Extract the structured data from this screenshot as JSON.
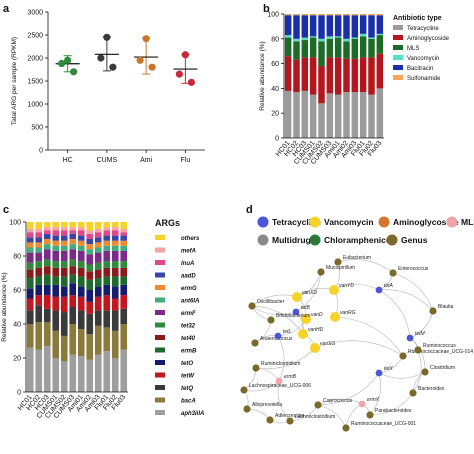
{
  "panels": {
    "a": "a",
    "b": "b",
    "c": "c",
    "d": "d"
  },
  "chart_data": [
    {
      "type": "scatter",
      "ylabel": "Tatal ARG per sample (RPKM)",
      "ylim": [
        0,
        3000
      ],
      "yticks": [
        0,
        500,
        1000,
        1500,
        2000,
        2500,
        3000
      ],
      "categories": [
        "HC",
        "CUMS",
        "Ami",
        "Flu"
      ],
      "colors": [
        "#2e8b3a",
        "#3a3a3a",
        "#c8762e",
        "#c8283a"
      ],
      "points": [
        [
          1950,
          1880,
          1700
        ],
        [
          2450,
          2000,
          1800
        ],
        [
          2420,
          1950,
          1800
        ],
        [
          2070,
          1650,
          1470
        ]
      ],
      "mean": [
        1875,
        2080,
        2020,
        1760
      ],
      "err_high": [
        2050,
        2460,
        2440,
        2080
      ],
      "err_low": [
        1700,
        1720,
        1650,
        1450
      ],
      "grid": false
    },
    {
      "type": "bar",
      "stacked": true,
      "ylabel": "Relative abundance (%)",
      "ylim": [
        0,
        100
      ],
      "yticks": [
        0,
        20,
        40,
        60,
        80,
        100
      ],
      "categories": [
        "HC01",
        "HC02",
        "HC03",
        "CUMS01",
        "CUMS02",
        "CUMS03",
        "Ami01",
        "Ami02",
        "Ami03",
        "Flu01",
        "Flu02",
        "Flu03"
      ],
      "legend_title": "Antibiotic type",
      "legend_position": "right",
      "series": [
        {
          "name": "Tetracycline",
          "color": "#9b9b9b",
          "values": [
            38,
            37,
            38,
            35,
            28,
            36,
            35,
            37,
            37,
            37,
            35,
            40
          ]
        },
        {
          "name": "Aminoglycoside",
          "color": "#b0171e",
          "values": [
            28,
            26,
            27,
            30,
            30,
            29,
            30,
            27,
            27,
            28,
            30,
            28
          ]
        },
        {
          "name": "MLS",
          "color": "#1e6b27",
          "values": [
            15,
            15,
            14,
            16,
            20,
            15,
            16,
            14,
            16,
            17,
            15,
            15
          ]
        },
        {
          "name": "Vancomycin",
          "color": "#55e0c2",
          "values": [
            2,
            2,
            2,
            1,
            2,
            2,
            1,
            2,
            1,
            2,
            1,
            1
          ]
        },
        {
          "name": "Bacitracin",
          "color": "#1a2fa8",
          "values": [
            16,
            19,
            18,
            17,
            19,
            17,
            17,
            19,
            18,
            15,
            18,
            15
          ]
        },
        {
          "name": "Sulfonamide",
          "color": "#f2a65a",
          "values": [
            1,
            1,
            1,
            1,
            1,
            1,
            1,
            1,
            1,
            1,
            1,
            1
          ]
        }
      ]
    },
    {
      "type": "bar",
      "stacked": true,
      "ylabel": "Relative abundance (%)",
      "ylim": [
        0,
        100
      ],
      "yticks": [
        0,
        20,
        40,
        60,
        80,
        100
      ],
      "categories": [
        "HC01",
        "HC02",
        "HC03",
        "CUMS01",
        "CUMS02",
        "CUMS03",
        "Ami01",
        "Ami02",
        "Ami03",
        "Flu01",
        "Flu02",
        "Flu03"
      ],
      "legend_title": "ARGs",
      "legend_position": "right",
      "series": [
        {
          "name": "aph3iiIA",
          "color": "#9e9e9e",
          "values": [
            26,
            25,
            27,
            20,
            18,
            22,
            21,
            19,
            22,
            24,
            20,
            25
          ]
        },
        {
          "name": "bacA",
          "color": "#8a7a3c",
          "values": [
            14,
            16,
            14,
            16,
            15,
            18,
            16,
            15,
            17,
            14,
            16,
            15
          ]
        },
        {
          "name": "tetQ",
          "color": "#3a3a3a",
          "values": [
            8,
            10,
            8,
            12,
            14,
            10,
            11,
            12,
            9,
            10,
            12,
            9
          ]
        },
        {
          "name": "tetW",
          "color": "#c0181e",
          "values": [
            7,
            6,
            8,
            8,
            9,
            7,
            8,
            7,
            8,
            9,
            7,
            8
          ]
        },
        {
          "name": "tetO",
          "color": "#151b6e",
          "values": [
            6,
            6,
            6,
            7,
            6,
            7,
            6,
            7,
            6,
            6,
            7,
            6
          ]
        },
        {
          "name": "ermB",
          "color": "#1e6a2c",
          "values": [
            6,
            5,
            6,
            5,
            6,
            5,
            6,
            6,
            5,
            5,
            6,
            5
          ]
        },
        {
          "name": "tet40",
          "color": "#8b1a1a",
          "values": [
            5,
            5,
            5,
            5,
            5,
            5,
            5,
            5,
            5,
            5,
            5,
            5
          ]
        },
        {
          "name": "tet32",
          "color": "#2f8a3b",
          "values": [
            4,
            4,
            4,
            4,
            4,
            4,
            4,
            4,
            4,
            4,
            4,
            4
          ]
        },
        {
          "name": "ermF",
          "color": "#7b2a8a",
          "values": [
            6,
            5,
            6,
            6,
            6,
            6,
            6,
            6,
            6,
            6,
            6,
            6
          ]
        },
        {
          "name": "ant6IA",
          "color": "#3fae7c",
          "values": [
            3,
            3,
            3,
            3,
            3,
            3,
            3,
            3,
            3,
            3,
            3,
            3
          ]
        },
        {
          "name": "ermG",
          "color": "#f08a2e",
          "values": [
            3,
            3,
            3,
            3,
            3,
            3,
            3,
            3,
            3,
            3,
            3,
            3
          ]
        },
        {
          "name": "aadD",
          "color": "#3a45a8",
          "values": [
            3,
            3,
            3,
            3,
            3,
            3,
            3,
            3,
            3,
            3,
            3,
            3
          ]
        },
        {
          "name": "lnuA",
          "color": "#e2478a",
          "values": [
            3,
            3,
            2,
            3,
            3,
            2,
            3,
            3,
            3,
            3,
            3,
            2
          ]
        },
        {
          "name": "mefA",
          "color": "#f6a3a3",
          "values": [
            2,
            2,
            2,
            2,
            2,
            2,
            2,
            2,
            2,
            2,
            2,
            2
          ]
        },
        {
          "name": "others",
          "color": "#f5d327",
          "values": [
            4,
            4,
            3,
            3,
            3,
            3,
            3,
            5,
            4,
            3,
            3,
            4
          ]
        }
      ]
    }
  ],
  "network": {
    "legend": [
      {
        "label": "Tetracycline",
        "color": "#4a55d8"
      },
      {
        "label": "Vancomycin",
        "color": "#f5d328"
      },
      {
        "label": "Aminoglycoside",
        "color": "#d4772e"
      },
      {
        "label": "MLS",
        "color": "#f2a4a8"
      },
      {
        "label": "Multidrug",
        "color": "#8a8a8a"
      },
      {
        "label": "Chloramphenicol",
        "color": "#2a7a35"
      },
      {
        "label": "Genus",
        "color": "#7a6a2a"
      }
    ],
    "nodes": [
      {
        "label": "Eubacterium",
        "cls": "Genus"
      },
      {
        "label": "Mucispirillum",
        "cls": "Genus"
      },
      {
        "label": "Enterococcus",
        "cls": "Genus"
      },
      {
        "label": "Oscillibacter",
        "cls": "Genus"
      },
      {
        "label": "vanXD",
        "cls": "Vancomycin"
      },
      {
        "label": "vanYD",
        "cls": "Vancomycin"
      },
      {
        "label": "tetA",
        "cls": "Tetracycline"
      },
      {
        "label": "vanHD",
        "cls": "Vancomycin"
      },
      {
        "label": "vanRG",
        "cls": "Vancomycin"
      },
      {
        "label": "Blautia",
        "cls": "Genus"
      },
      {
        "label": "tetM",
        "cls": "Tetracycline"
      },
      {
        "label": "vanD",
        "cls": "Vancomycin"
      },
      {
        "label": "vanSG",
        "cls": "Vancomycin"
      },
      {
        "label": "Anaerotruncus",
        "cls": "Genus"
      },
      {
        "label": "tetL",
        "cls": "Tetracycline"
      },
      {
        "label": "Ruminococcaceae_UCG-014",
        "cls": "Genus"
      },
      {
        "label": "Ruminococcus",
        "cls": "Genus"
      },
      {
        "label": "Clostridium",
        "cls": "Genus"
      },
      {
        "label": "Ruminiclostridium",
        "cls": "Genus"
      },
      {
        "label": "ermB",
        "cls": "MLS"
      },
      {
        "label": "tetX",
        "cls": "Tetracycline"
      },
      {
        "label": "Lachnospiraceae_UCG-006",
        "cls": "Genus"
      },
      {
        "label": "Bacteroides",
        "cls": "Genus"
      },
      {
        "label": "Alloprevotella",
        "cls": "Genus"
      },
      {
        "label": "Coprococcus",
        "cls": "Genus"
      },
      {
        "label": "Parabacteroides",
        "cls": "Genus"
      },
      {
        "label": "Lachnoclostridium",
        "cls": "Genus"
      },
      {
        "label": "Ruminococcaceae_UCG-001",
        "cls": "Genus"
      },
      {
        "label": "Adlercreutzia",
        "cls": "Genus"
      },
      {
        "label": "ermX",
        "cls": "MLS"
      },
      {
        "label": "tetB",
        "cls": "Tetracycline"
      },
      {
        "label": "Bifidobacterium",
        "cls": "Genus"
      }
    ]
  }
}
